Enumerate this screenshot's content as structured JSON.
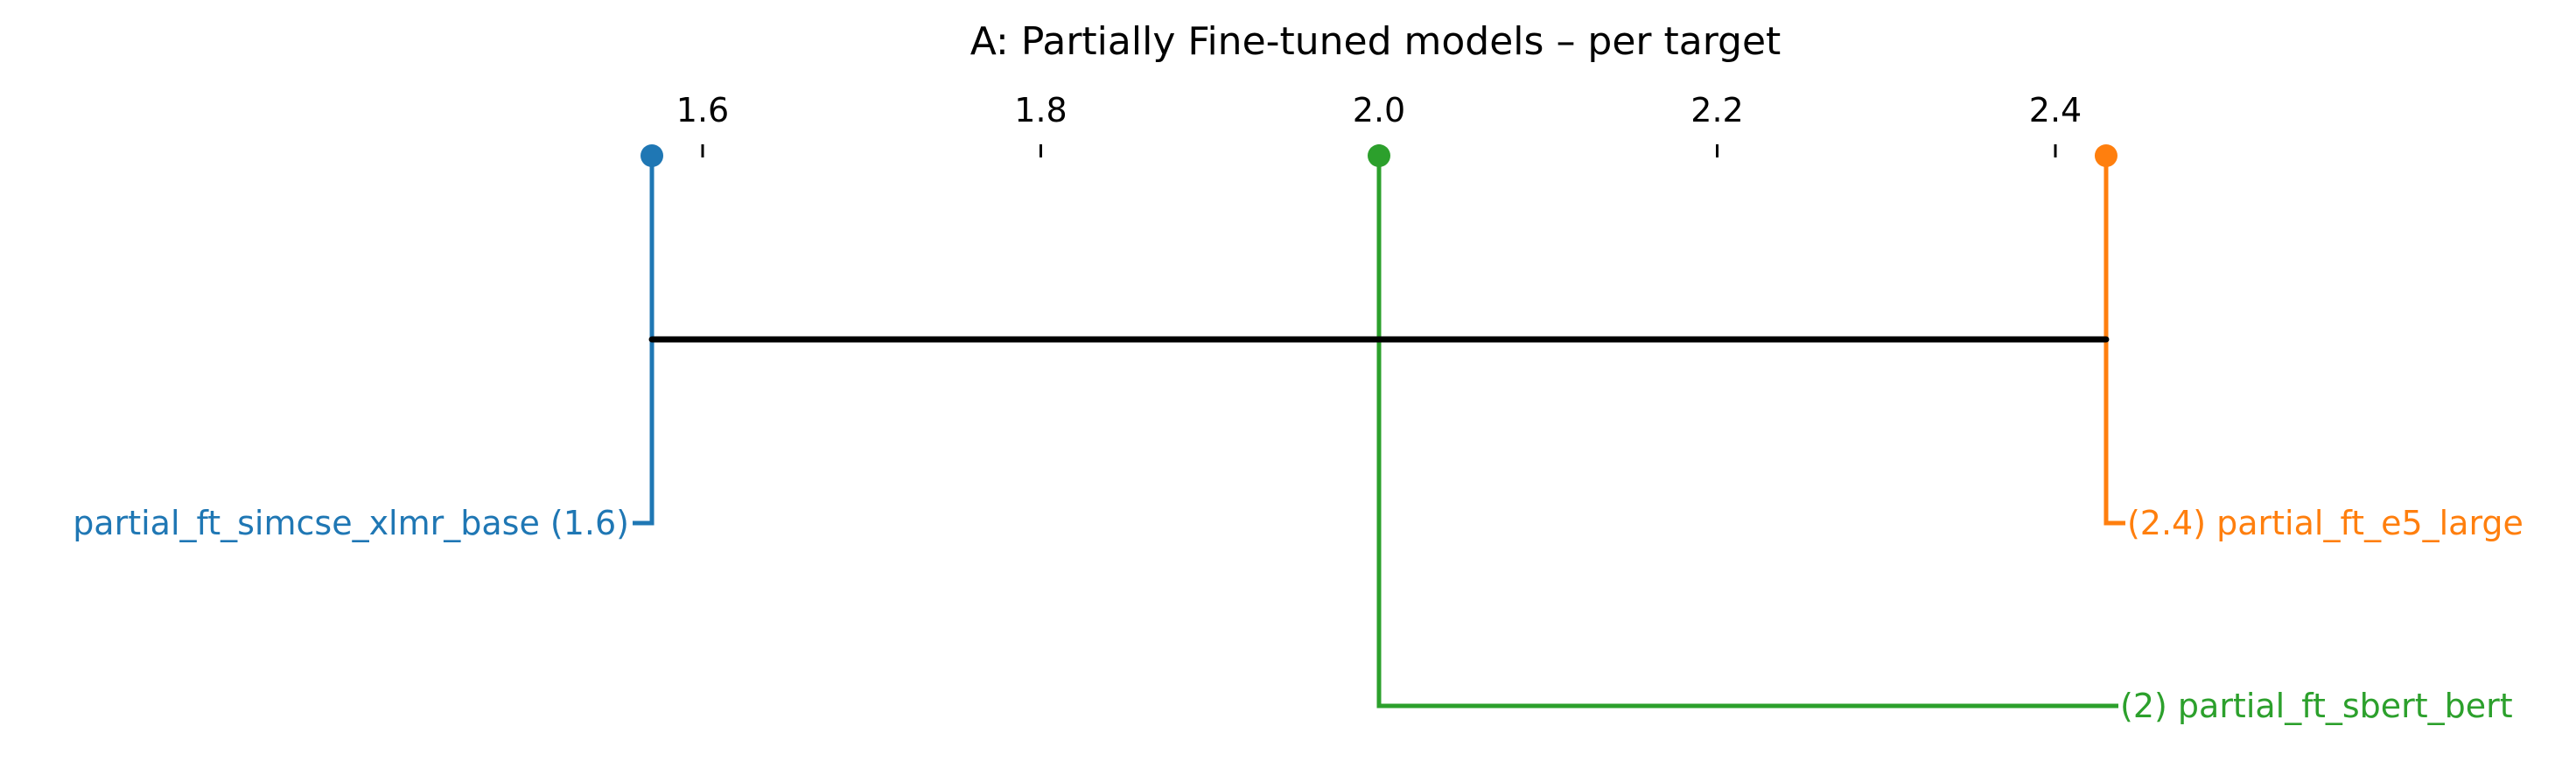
{
  "chart_data": {
    "type": "critical-difference-diagram",
    "title": "A: Partially Fine-tuned models – per target",
    "axis": {
      "range": [
        1.56,
        2.43
      ],
      "ticks": [
        1.6,
        1.8,
        2.0,
        2.2,
        2.4
      ],
      "tick_labels": [
        "1.6",
        "1.8",
        "2.0",
        "2.2",
        "2.4"
      ]
    },
    "series": [
      {
        "name": "partial_ft_simcse_xlmr_base",
        "rank": 1.57,
        "label": "partial_ft_simcse_xlmr_base (1.6)",
        "side": "left",
        "color": "#1f77b4"
      },
      {
        "name": "partial_ft_e5_large",
        "rank": 2.43,
        "label": "(2.4) partial_ft_e5_large",
        "side": "right",
        "color": "#ff7f0e"
      },
      {
        "name": "partial_ft_sbert_bert",
        "rank": 2.0,
        "label": "(2) partial_ft_sbert_bert",
        "side": "right",
        "color": "#2ca02c"
      }
    ],
    "cliques": [
      {
        "from": 1.57,
        "to": 2.43,
        "color": "#000000"
      }
    ]
  }
}
